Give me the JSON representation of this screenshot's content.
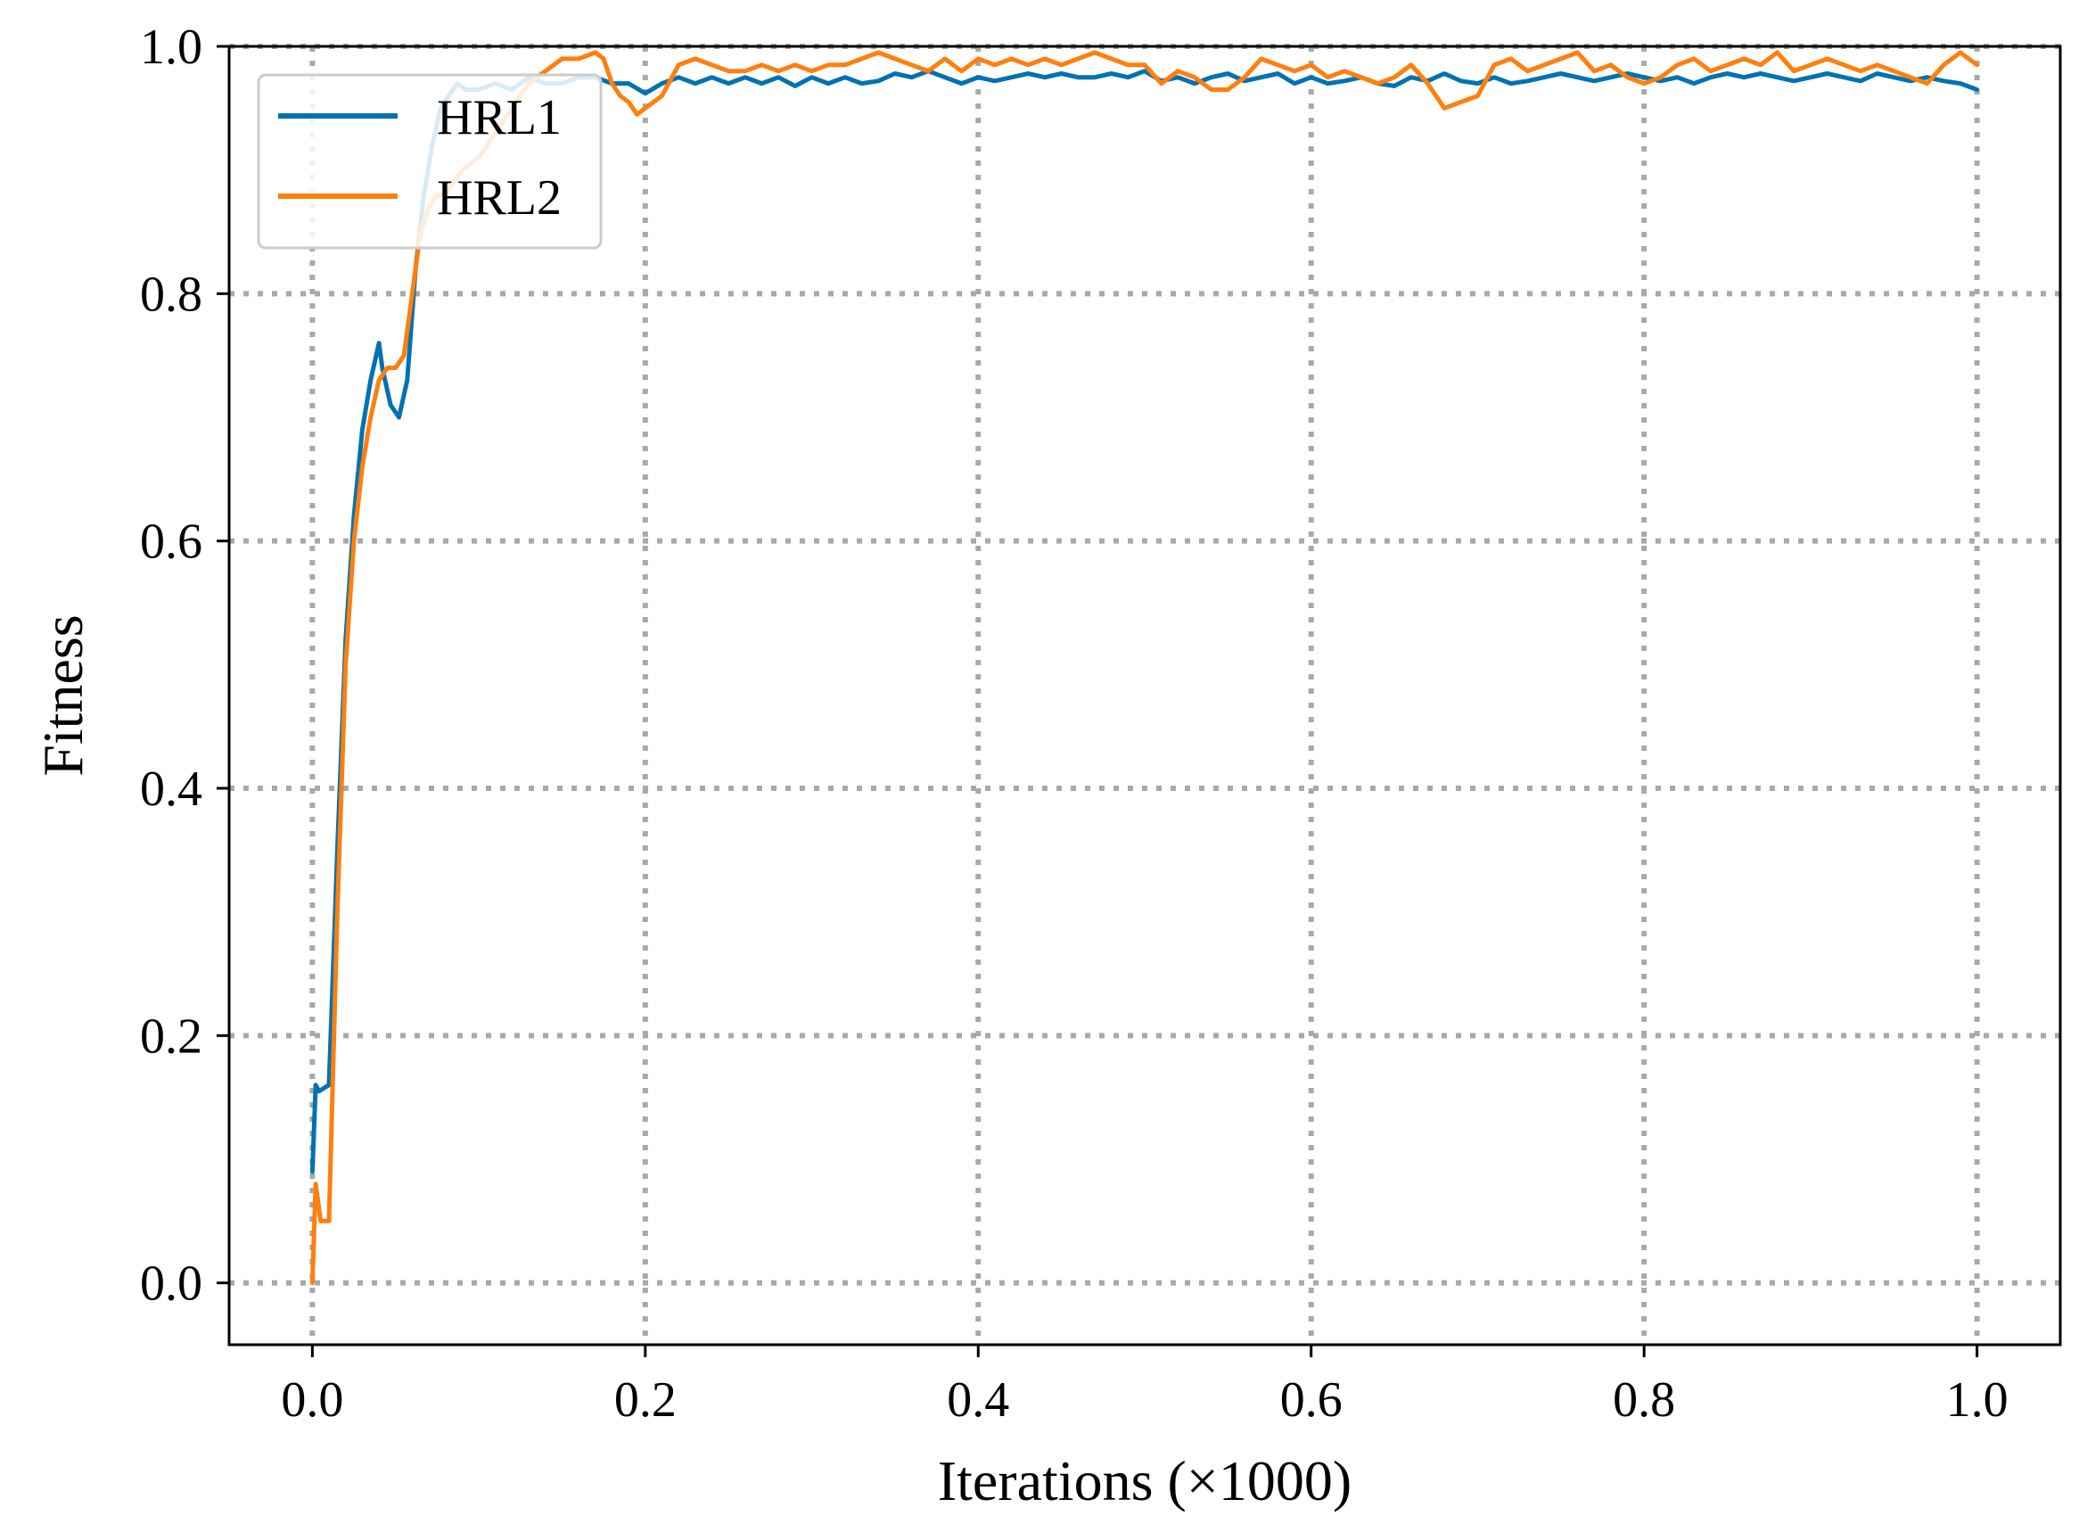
{
  "chart_data": {
    "type": "line",
    "xlabel": "Iterations (×1000)",
    "ylabel": "Fitness",
    "xlim": [
      -0.05,
      1.05
    ],
    "ylim": [
      -0.05,
      1.0
    ],
    "xticks": [
      "0.0",
      "0.2",
      "0.4",
      "0.6",
      "0.8",
      "1.0"
    ],
    "yticks": [
      "0.0",
      "0.2",
      "0.4",
      "0.6",
      "0.8",
      "1.0"
    ],
    "grid": true,
    "legend": "top-left",
    "series": [
      {
        "name": "HRL1",
        "color": "#0072b2",
        "x": [
          0.0,
          0.002,
          0.004,
          0.01,
          0.015,
          0.02,
          0.025,
          0.03,
          0.035,
          0.04,
          0.042,
          0.047,
          0.052,
          0.057,
          0.062,
          0.067,
          0.072,
          0.077,
          0.082,
          0.087,
          0.092,
          0.1,
          0.11,
          0.12,
          0.13,
          0.14,
          0.15,
          0.16,
          0.17,
          0.18,
          0.19,
          0.2,
          0.21,
          0.22,
          0.23,
          0.24,
          0.25,
          0.26,
          0.27,
          0.28,
          0.29,
          0.3,
          0.31,
          0.32,
          0.33,
          0.34,
          0.35,
          0.36,
          0.37,
          0.38,
          0.39,
          0.4,
          0.41,
          0.42,
          0.43,
          0.44,
          0.45,
          0.46,
          0.47,
          0.48,
          0.49,
          0.5,
          0.51,
          0.52,
          0.53,
          0.54,
          0.55,
          0.56,
          0.57,
          0.58,
          0.59,
          0.6,
          0.61,
          0.62,
          0.63,
          0.64,
          0.65,
          0.66,
          0.67,
          0.68,
          0.69,
          0.7,
          0.71,
          0.72,
          0.73,
          0.74,
          0.75,
          0.76,
          0.77,
          0.78,
          0.79,
          0.8,
          0.81,
          0.82,
          0.83,
          0.84,
          0.85,
          0.86,
          0.87,
          0.88,
          0.89,
          0.9,
          0.91,
          0.92,
          0.93,
          0.94,
          0.95,
          0.96,
          0.97,
          0.98,
          0.99,
          1.0
        ],
        "y": [
          0.09,
          0.16,
          0.155,
          0.16,
          0.35,
          0.52,
          0.62,
          0.69,
          0.73,
          0.76,
          0.74,
          0.71,
          0.7,
          0.73,
          0.82,
          0.88,
          0.92,
          0.95,
          0.96,
          0.97,
          0.965,
          0.965,
          0.97,
          0.965,
          0.975,
          0.97,
          0.97,
          0.975,
          0.975,
          0.97,
          0.97,
          0.962,
          0.97,
          0.975,
          0.97,
          0.975,
          0.97,
          0.975,
          0.97,
          0.975,
          0.968,
          0.975,
          0.97,
          0.975,
          0.97,
          0.972,
          0.978,
          0.975,
          0.98,
          0.975,
          0.97,
          0.975,
          0.972,
          0.975,
          0.978,
          0.975,
          0.978,
          0.975,
          0.975,
          0.978,
          0.975,
          0.98,
          0.972,
          0.975,
          0.97,
          0.975,
          0.978,
          0.972,
          0.975,
          0.978,
          0.97,
          0.975,
          0.97,
          0.972,
          0.975,
          0.97,
          0.968,
          0.975,
          0.972,
          0.978,
          0.972,
          0.97,
          0.975,
          0.97,
          0.972,
          0.975,
          0.978,
          0.975,
          0.972,
          0.975,
          0.978,
          0.975,
          0.972,
          0.975,
          0.97,
          0.975,
          0.978,
          0.975,
          0.978,
          0.975,
          0.972,
          0.975,
          0.978,
          0.975,
          0.972,
          0.978,
          0.975,
          0.972,
          0.975,
          0.972,
          0.97,
          0.965
        ]
      },
      {
        "name": "HRL2",
        "color": "#ff7f0e",
        "x": [
          0.0,
          0.002,
          0.005,
          0.01,
          0.015,
          0.02,
          0.025,
          0.03,
          0.035,
          0.04,
          0.045,
          0.05,
          0.055,
          0.06,
          0.065,
          0.07,
          0.075,
          0.08,
          0.09,
          0.1,
          0.11,
          0.12,
          0.13,
          0.14,
          0.15,
          0.16,
          0.17,
          0.175,
          0.18,
          0.185,
          0.19,
          0.195,
          0.2,
          0.21,
          0.22,
          0.23,
          0.24,
          0.25,
          0.26,
          0.27,
          0.28,
          0.29,
          0.3,
          0.31,
          0.32,
          0.33,
          0.34,
          0.35,
          0.36,
          0.37,
          0.38,
          0.39,
          0.4,
          0.41,
          0.42,
          0.43,
          0.44,
          0.45,
          0.46,
          0.47,
          0.48,
          0.49,
          0.5,
          0.51,
          0.52,
          0.53,
          0.54,
          0.55,
          0.56,
          0.57,
          0.58,
          0.59,
          0.6,
          0.61,
          0.62,
          0.63,
          0.64,
          0.65,
          0.66,
          0.67,
          0.68,
          0.69,
          0.7,
          0.71,
          0.72,
          0.73,
          0.74,
          0.75,
          0.76,
          0.77,
          0.78,
          0.79,
          0.8,
          0.81,
          0.82,
          0.83,
          0.84,
          0.85,
          0.86,
          0.87,
          0.88,
          0.89,
          0.9,
          0.91,
          0.92,
          0.93,
          0.94,
          0.95,
          0.96,
          0.97,
          0.98,
          0.99,
          1.0
        ],
        "y": [
          0.0,
          0.08,
          0.05,
          0.05,
          0.3,
          0.5,
          0.6,
          0.66,
          0.7,
          0.73,
          0.74,
          0.74,
          0.75,
          0.8,
          0.85,
          0.87,
          0.88,
          0.88,
          0.9,
          0.91,
          0.93,
          0.95,
          0.97,
          0.98,
          0.99,
          0.99,
          0.995,
          0.99,
          0.97,
          0.96,
          0.955,
          0.945,
          0.95,
          0.96,
          0.985,
          0.99,
          0.985,
          0.98,
          0.98,
          0.985,
          0.98,
          0.985,
          0.98,
          0.985,
          0.985,
          0.99,
          0.995,
          0.99,
          0.985,
          0.98,
          0.99,
          0.98,
          0.99,
          0.985,
          0.99,
          0.985,
          0.99,
          0.985,
          0.99,
          0.995,
          0.99,
          0.985,
          0.985,
          0.97,
          0.98,
          0.975,
          0.965,
          0.965,
          0.975,
          0.99,
          0.985,
          0.98,
          0.985,
          0.975,
          0.98,
          0.975,
          0.97,
          0.975,
          0.985,
          0.97,
          0.95,
          0.955,
          0.96,
          0.985,
          0.99,
          0.98,
          0.985,
          0.99,
          0.995,
          0.98,
          0.985,
          0.975,
          0.97,
          0.975,
          0.985,
          0.99,
          0.98,
          0.985,
          0.99,
          0.985,
          0.995,
          0.98,
          0.985,
          0.99,
          0.985,
          0.98,
          0.985,
          0.98,
          0.975,
          0.97,
          0.985,
          0.995,
          0.985
        ]
      }
    ]
  }
}
